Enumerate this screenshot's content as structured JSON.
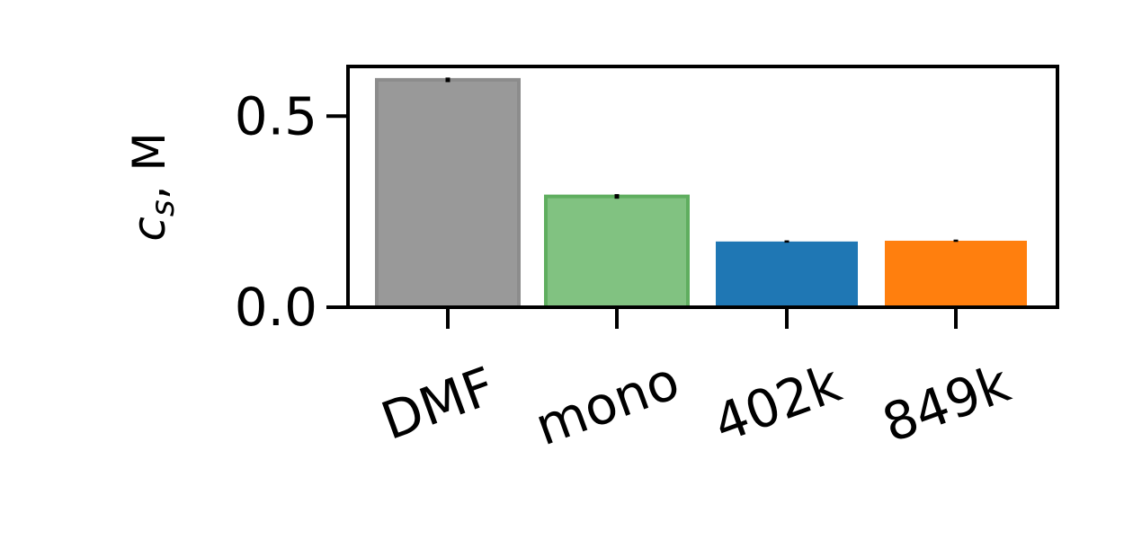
{
  "chart_data": {
    "type": "bar",
    "title": "",
    "xlabel": "",
    "ylabel_main": "c",
    "ylabel_sub": "s",
    "ylabel_suffix": ", M",
    "categories": [
      "DMF",
      "mono",
      "402k",
      "849k"
    ],
    "values": [
      0.595,
      0.29,
      0.172,
      0.174
    ],
    "errors": [
      0.006,
      0.006,
      0.003,
      0.003
    ],
    "colors": [
      "#999999",
      "#81c281",
      "#1f77b4",
      "#ff7f0e"
    ],
    "edge_colors": [
      "#8c8c8c",
      "#5fae5f",
      "#1f77b4",
      "#ff7f0e"
    ],
    "ylim": [
      0,
      0.63
    ],
    "yticks": [
      0.0,
      0.5
    ],
    "ytick_labels": [
      "0.0",
      "0.5"
    ],
    "grid": false
  }
}
